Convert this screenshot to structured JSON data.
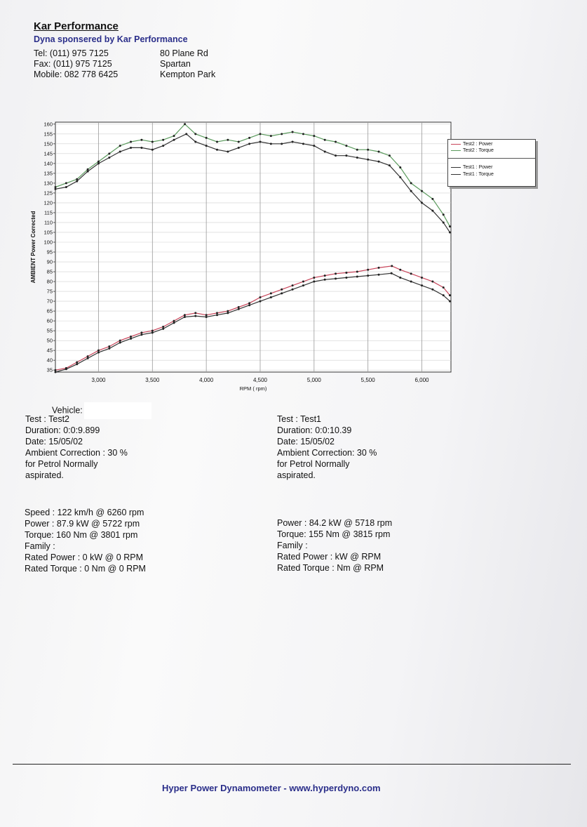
{
  "header": {
    "company": "Kar Performance",
    "sponsor": "Dyna sponsered by Kar Performance",
    "contact_left": [
      "Tel: (011) 975 7125",
      "Fax: (011) 975 7125",
      "Mobile: 082 778 6425"
    ],
    "contact_right": [
      "80 Plane Rd",
      "Spartan",
      "Kempton Park"
    ]
  },
  "chart_data": {
    "type": "line",
    "xlabel": "RPM ( rpm)",
    "ylabel": "AMBIENT Power Corrected",
    "xlim": [
      2600,
      6270
    ],
    "ylim": [
      34,
      161
    ],
    "x_ticks": [
      "3,000",
      "3,500",
      "4,000",
      "4,500",
      "5,000",
      "5,500",
      "6,000"
    ],
    "x_tick_values": [
      3000,
      3500,
      4000,
      4500,
      5000,
      5500,
      6000
    ],
    "y_ticks": [
      35,
      40,
      45,
      50,
      55,
      60,
      65,
      70,
      75,
      80,
      85,
      90,
      95,
      100,
      105,
      110,
      115,
      120,
      125,
      130,
      135,
      140,
      145,
      150,
      155,
      160
    ],
    "grid": true,
    "legend_position": "right",
    "series": [
      {
        "name": "Test2 : Power",
        "color": "#c8455a",
        "x": [
          2600,
          2700,
          2800,
          2900,
          3000,
          3100,
          3200,
          3300,
          3400,
          3500,
          3600,
          3700,
          3800,
          3900,
          4000,
          4100,
          4200,
          4300,
          4400,
          4500,
          4600,
          4700,
          4800,
          4900,
          5000,
          5100,
          5200,
          5300,
          5400,
          5500,
          5600,
          5722,
          5800,
          5900,
          6000,
          6100,
          6200,
          6260
        ],
        "y": [
          35,
          36,
          39,
          42,
          45,
          47,
          50,
          52,
          54,
          55,
          57,
          60,
          63,
          64,
          63,
          64,
          65,
          67,
          69,
          72,
          74,
          76,
          78,
          80,
          82,
          83,
          84,
          84.5,
          85,
          86,
          87,
          87.9,
          86,
          84,
          82,
          80,
          77,
          73
        ]
      },
      {
        "name": "Test2 : Torque",
        "color": "#5a9a5c",
        "x": [
          2600,
          2700,
          2800,
          2900,
          3000,
          3100,
          3200,
          3300,
          3400,
          3500,
          3600,
          3700,
          3801,
          3900,
          4000,
          4100,
          4200,
          4300,
          4400,
          4500,
          4600,
          4700,
          4800,
          4900,
          5000,
          5100,
          5200,
          5300,
          5400,
          5500,
          5600,
          5700,
          5800,
          5900,
          6000,
          6100,
          6200,
          6260
        ],
        "y": [
          128,
          130,
          132,
          137,
          141,
          145,
          149,
          151,
          152,
          151,
          152,
          154,
          160,
          155,
          153,
          151,
          152,
          151,
          153,
          155,
          154,
          155,
          156,
          155,
          154,
          152,
          151,
          149,
          147,
          147,
          146,
          144,
          138,
          130,
          126,
          122,
          114,
          108
        ]
      },
      {
        "name": "Test1 : Power",
        "color": "#333333",
        "x": [
          2600,
          2700,
          2800,
          2900,
          3000,
          3100,
          3200,
          3300,
          3400,
          3500,
          3600,
          3700,
          3800,
          3900,
          4000,
          4100,
          4200,
          4300,
          4400,
          4500,
          4600,
          4700,
          4800,
          4900,
          5000,
          5100,
          5200,
          5300,
          5400,
          5500,
          5600,
          5718,
          5800,
          5900,
          6000,
          6100,
          6200,
          6260
        ],
        "y": [
          34,
          35.5,
          38,
          41,
          44,
          46,
          49,
          51,
          53,
          54,
          56,
          59,
          62,
          62.5,
          62,
          63,
          64,
          66,
          68,
          70,
          72,
          74,
          76,
          78,
          80,
          81,
          81.5,
          82,
          82.5,
          83,
          83.5,
          84.2,
          82,
          80,
          78,
          76,
          73,
          70
        ]
      },
      {
        "name": "Test1 : Torque",
        "color": "#333333",
        "x": [
          2600,
          2700,
          2800,
          2900,
          3000,
          3100,
          3200,
          3300,
          3400,
          3500,
          3600,
          3700,
          3815,
          3900,
          4000,
          4100,
          4200,
          4300,
          4400,
          4500,
          4600,
          4700,
          4800,
          4900,
          5000,
          5100,
          5200,
          5300,
          5400,
          5500,
          5600,
          5700,
          5800,
          5900,
          6000,
          6100,
          6200,
          6260
        ],
        "y": [
          127,
          128,
          131,
          136,
          140,
          143,
          146,
          148,
          148,
          147,
          149,
          152,
          155,
          151,
          149,
          147,
          146,
          148,
          150,
          151,
          150,
          150,
          151,
          150,
          149,
          146,
          144,
          144,
          143,
          142,
          141,
          139,
          133,
          126,
          120,
          116,
          110,
          105
        ]
      }
    ]
  },
  "test2": {
    "vehicle_label": "Vehicle:",
    "test": "Test    : Test2",
    "duration": "Duration: 0:0:9.899",
    "date": "Date: 15/05/02",
    "ambient": "Ambient Correction : 30 %",
    "petrol": " for Petrol Normally",
    "aspirated": "aspirated.",
    "speed": "Speed : 122 km/h @ 6260 rpm",
    "power": "Power : 87.9 kW @ 5722 rpm",
    "torque": "Torque: 160 Nm @ 3801 rpm",
    "family": "Family :",
    "rated_power": "Rated Power : 0 kW @ 0 RPM",
    "rated_torque": "Rated Torque : 0 Nm @ 0 RPM"
  },
  "test1": {
    "test": "Test    : Test1",
    "duration": "Duration: 0:0:10.39",
    "date": "Date: 15/05/02",
    "ambient": "Ambient Correction: 30 %",
    "petrol": " for Petrol Normally",
    "aspirated": "aspirated.",
    "power": "Power : 84.2 kW @ 5718 rpm",
    "torque": "Torque: 155 Nm @ 3815 rpm",
    "family": "Family :",
    "rated_power": "Rated Power :  kW @  RPM",
    "rated_torque": "Rated Torque :  Nm @  RPM"
  },
  "footer": {
    "text": "Hyper Power Dynamometer  -  www.hyperdyno.com"
  }
}
